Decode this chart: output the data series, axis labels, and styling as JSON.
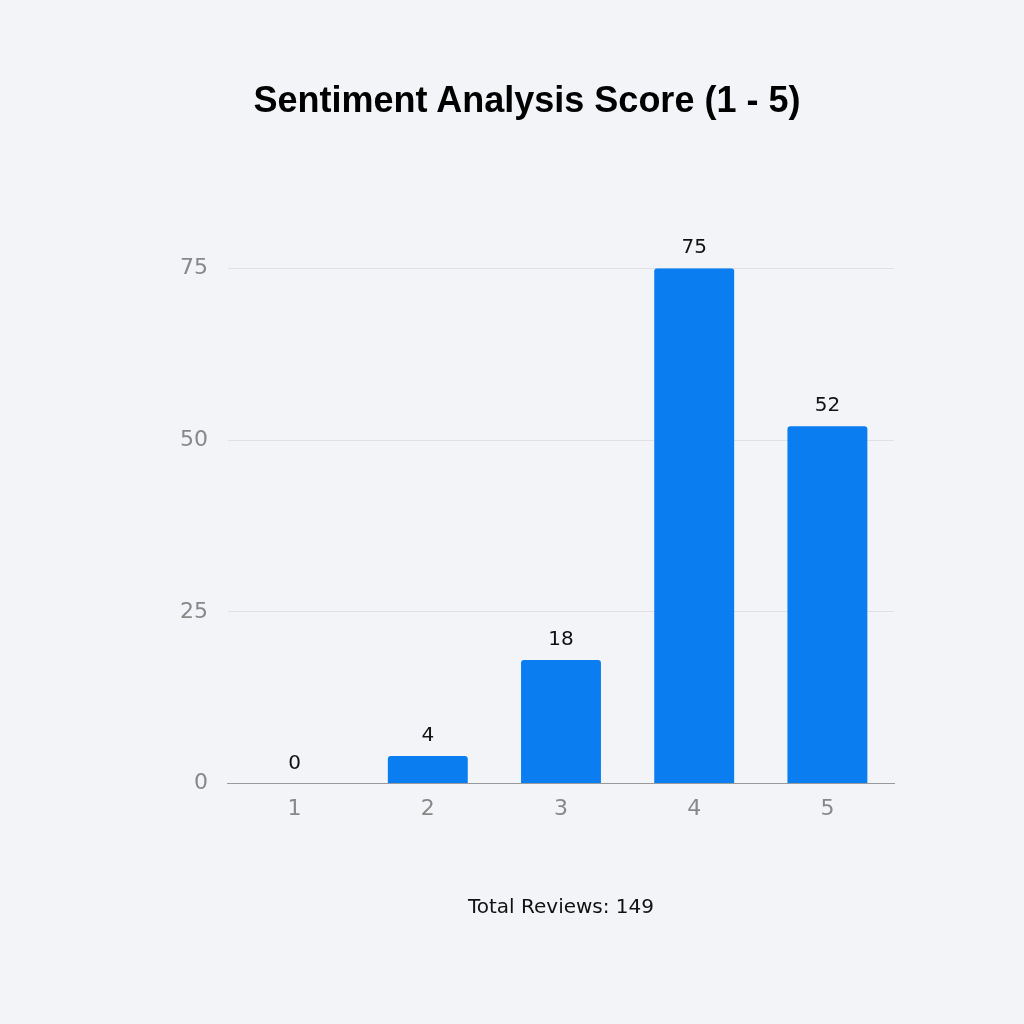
{
  "chart_data": {
    "type": "bar",
    "title": "Sentiment Analysis Score (1 - 5)",
    "categories": [
      "1",
      "2",
      "3",
      "4",
      "5"
    ],
    "values": [
      0,
      4,
      18,
      75,
      52
    ],
    "color": "#0a7ef0",
    "ylim": [
      0,
      75
    ],
    "yticks": [
      0,
      25,
      50,
      75
    ],
    "grid": "y",
    "data_labels": true,
    "annotations": [
      "Total Reviews: 149"
    ]
  }
}
